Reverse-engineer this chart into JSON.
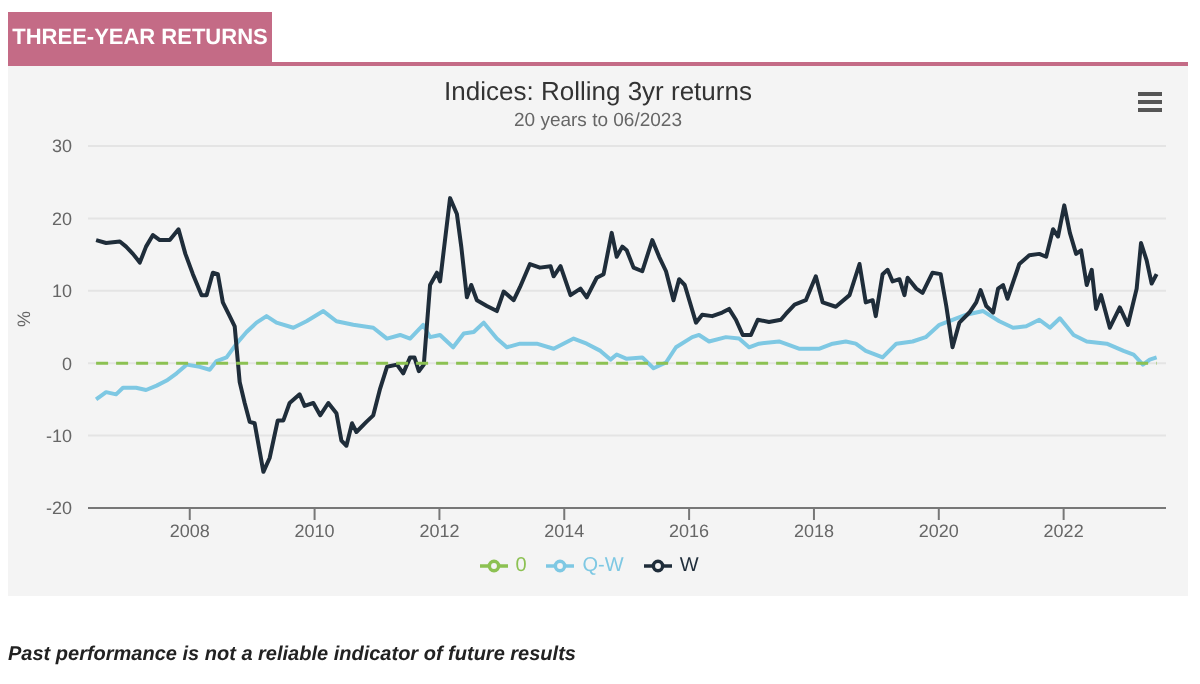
{
  "chart_data": {
    "type": "line",
    "title": "Indices: Rolling 3yr returns",
    "subtitle": "20 years to 06/2023",
    "ylabel": "%",
    "annotations": [
      "THREE-YEAR RETURNS",
      "Past performance is not a reliable indicator of future results"
    ],
    "xlim": [
      2006.37,
      2023.64
    ],
    "xticks": [
      2008,
      2010,
      2012,
      2014,
      2016,
      2018,
      2020,
      2022
    ],
    "ylim": [
      -20,
      30
    ],
    "yticks": [
      -20,
      -10,
      0,
      10,
      20,
      30
    ],
    "grid": "y",
    "legend": "bottom",
    "marker": "none",
    "series": [
      {
        "name": "Q-W",
        "color": "#7ec8e3",
        "x": [
          2006.5,
          2006.66,
          2006.82,
          2006.93,
          2007.14,
          2007.3,
          2007.47,
          2007.63,
          2007.79,
          2007.95,
          2008.16,
          2008.32,
          2008.43,
          2008.59,
          2008.75,
          2008.91,
          2009.07,
          2009.23,
          2009.39,
          2009.66,
          2009.87,
          2010.14,
          2010.35,
          2010.62,
          2010.94,
          2011.16,
          2011.37,
          2011.53,
          2011.74,
          2011.85,
          2012.01,
          2012.22,
          2012.39,
          2012.55,
          2012.71,
          2012.92,
          2013.08,
          2013.29,
          2013.56,
          2013.83,
          2014.15,
          2014.36,
          2014.58,
          2014.74,
          2014.84,
          2015.0,
          2015.25,
          2015.43,
          2015.63,
          2015.79,
          2016.05,
          2016.16,
          2016.32,
          2016.59,
          2016.8,
          2016.96,
          2017.12,
          2017.44,
          2017.76,
          2018.09,
          2018.3,
          2018.51,
          2018.67,
          2018.83,
          2019.1,
          2019.32,
          2019.58,
          2019.79,
          2020.01,
          2020.22,
          2020.44,
          2020.71,
          2020.97,
          2021.19,
          2021.4,
          2021.61,
          2021.78,
          2021.94,
          2022.16,
          2022.37,
          2022.69,
          2022.96,
          2023.12,
          2023.27,
          2023.38,
          2023.49
        ],
        "values": [
          -5.0,
          -4.0,
          -4.3,
          -3.4,
          -3.4,
          -3.7,
          -3.1,
          -2.4,
          -1.4,
          -0.2,
          -0.5,
          -0.9,
          0.3,
          0.8,
          2.7,
          4.3,
          5.6,
          6.5,
          5.6,
          4.9,
          5.8,
          7.2,
          5.8,
          5.3,
          4.9,
          3.4,
          3.9,
          3.4,
          5.3,
          3.6,
          3.9,
          2.2,
          4.1,
          4.3,
          5.6,
          3.4,
          2.2,
          2.7,
          2.7,
          2.0,
          3.4,
          2.7,
          1.7,
          0.5,
          1.2,
          0.6,
          0.8,
          -0.7,
          0.1,
          2.2,
          3.6,
          3.9,
          3.0,
          3.6,
          3.4,
          2.2,
          2.7,
          3.0,
          2.0,
          2.0,
          2.7,
          3.0,
          2.7,
          1.7,
          0.8,
          2.7,
          3.0,
          3.6,
          5.3,
          6.0,
          6.7,
          7.2,
          5.8,
          4.9,
          5.1,
          6.0,
          4.9,
          6.2,
          3.9,
          3.0,
          2.7,
          1.7,
          1.2,
          -0.2,
          0.5,
          0.8
        ]
      },
      {
        "name": "W",
        "color": "#1f2d3a",
        "x": [
          2006.5,
          2006.66,
          2006.88,
          2006.98,
          2007.09,
          2007.2,
          2007.3,
          2007.41,
          2007.52,
          2007.68,
          2007.82,
          2007.93,
          2008.05,
          2008.19,
          2008.27,
          2008.37,
          2008.45,
          2008.53,
          2008.64,
          2008.72,
          2008.8,
          2008.88,
          2008.96,
          2009.04,
          2009.18,
          2009.28,
          2009.41,
          2009.5,
          2009.6,
          2009.76,
          2009.84,
          2009.98,
          2010.09,
          2010.22,
          2010.35,
          2010.43,
          2010.51,
          2010.6,
          2010.67,
          2010.83,
          2010.94,
          2011.05,
          2011.16,
          2011.32,
          2011.42,
          2011.53,
          2011.6,
          2011.67,
          2011.75,
          2011.85,
          2011.96,
          2012.01,
          2012.17,
          2012.28,
          2012.35,
          2012.44,
          2012.51,
          2012.6,
          2012.76,
          2012.92,
          2013.03,
          2013.19,
          2013.29,
          2013.45,
          2013.61,
          2013.78,
          2013.83,
          2013.94,
          2014.1,
          2014.26,
          2014.36,
          2014.52,
          2014.63,
          2014.76,
          2014.84,
          2014.93,
          2015.0,
          2015.11,
          2015.25,
          2015.41,
          2015.52,
          2015.63,
          2015.75,
          2015.84,
          2015.93,
          2016.11,
          2016.21,
          2016.37,
          2016.53,
          2016.64,
          2016.75,
          2016.86,
          2016.99,
          2017.1,
          2017.28,
          2017.47,
          2017.55,
          2017.69,
          2017.87,
          2018.03,
          2018.14,
          2018.35,
          2018.57,
          2018.73,
          2018.83,
          2018.94,
          2018.99,
          2019.1,
          2019.18,
          2019.26,
          2019.37,
          2019.45,
          2019.5,
          2019.64,
          2019.74,
          2019.9,
          2020.03,
          2020.12,
          2020.22,
          2020.33,
          2020.49,
          2020.6,
          2020.67,
          2020.76,
          2020.87,
          2020.95,
          2021.03,
          2021.1,
          2021.29,
          2021.45,
          2021.61,
          2021.72,
          2021.83,
          2021.91,
          2022.01,
          2022.1,
          2022.2,
          2022.28,
          2022.37,
          2022.45,
          2022.52,
          2022.6,
          2022.74,
          2022.9,
          2023.03,
          2023.17,
          2023.24,
          2023.33,
          2023.41,
          2023.49
        ],
        "values": [
          17.0,
          16.6,
          16.8,
          16.1,
          15.1,
          13.9,
          16.1,
          17.7,
          17.0,
          17.0,
          18.5,
          15.1,
          12.3,
          9.4,
          9.4,
          12.5,
          12.3,
          8.4,
          6.5,
          5.1,
          -2.6,
          -5.5,
          -8.1,
          -8.3,
          -15.0,
          -13.1,
          -7.9,
          -7.9,
          -5.5,
          -4.3,
          -5.9,
          -5.5,
          -7.2,
          -5.5,
          -6.9,
          -10.7,
          -11.4,
          -8.3,
          -9.5,
          -8.1,
          -7.2,
          -3.5,
          -0.5,
          -0.2,
          -1.4,
          0.8,
          0.8,
          -1.1,
          -0.2,
          10.8,
          12.5,
          11.3,
          22.8,
          20.6,
          16.1,
          9.1,
          10.8,
          8.7,
          7.9,
          7.2,
          9.9,
          8.7,
          10.5,
          13.7,
          13.2,
          13.4,
          12.0,
          13.4,
          9.4,
          10.3,
          9.1,
          11.8,
          12.3,
          18.0,
          14.7,
          16.1,
          15.6,
          13.2,
          12.7,
          17.0,
          14.7,
          12.7,
          8.7,
          11.6,
          10.8,
          5.6,
          6.7,
          6.5,
          7.0,
          7.5,
          6.0,
          3.9,
          3.9,
          6.0,
          5.7,
          6.0,
          6.8,
          8.1,
          8.7,
          12.0,
          8.4,
          7.8,
          9.4,
          13.7,
          8.4,
          8.7,
          6.5,
          12.3,
          12.9,
          11.3,
          11.6,
          9.4,
          11.8,
          10.3,
          9.7,
          12.5,
          12.3,
          7.9,
          2.2,
          5.6,
          7.0,
          8.4,
          10.1,
          7.9,
          7.0,
          10.3,
          10.8,
          8.9,
          13.7,
          14.9,
          15.1,
          14.7,
          18.5,
          17.5,
          21.8,
          18.0,
          15.1,
          15.6,
          10.8,
          12.9,
          7.5,
          9.4,
          4.9,
          7.7,
          5.3,
          10.3,
          16.6,
          14.2,
          11.0,
          12.3
        ]
      },
      {
        "name": "0",
        "color": "#8cc152",
        "line_style": "dashed",
        "x": [
          2006.5,
          2023.49
        ],
        "values": [
          0,
          0
        ]
      }
    ]
  }
}
